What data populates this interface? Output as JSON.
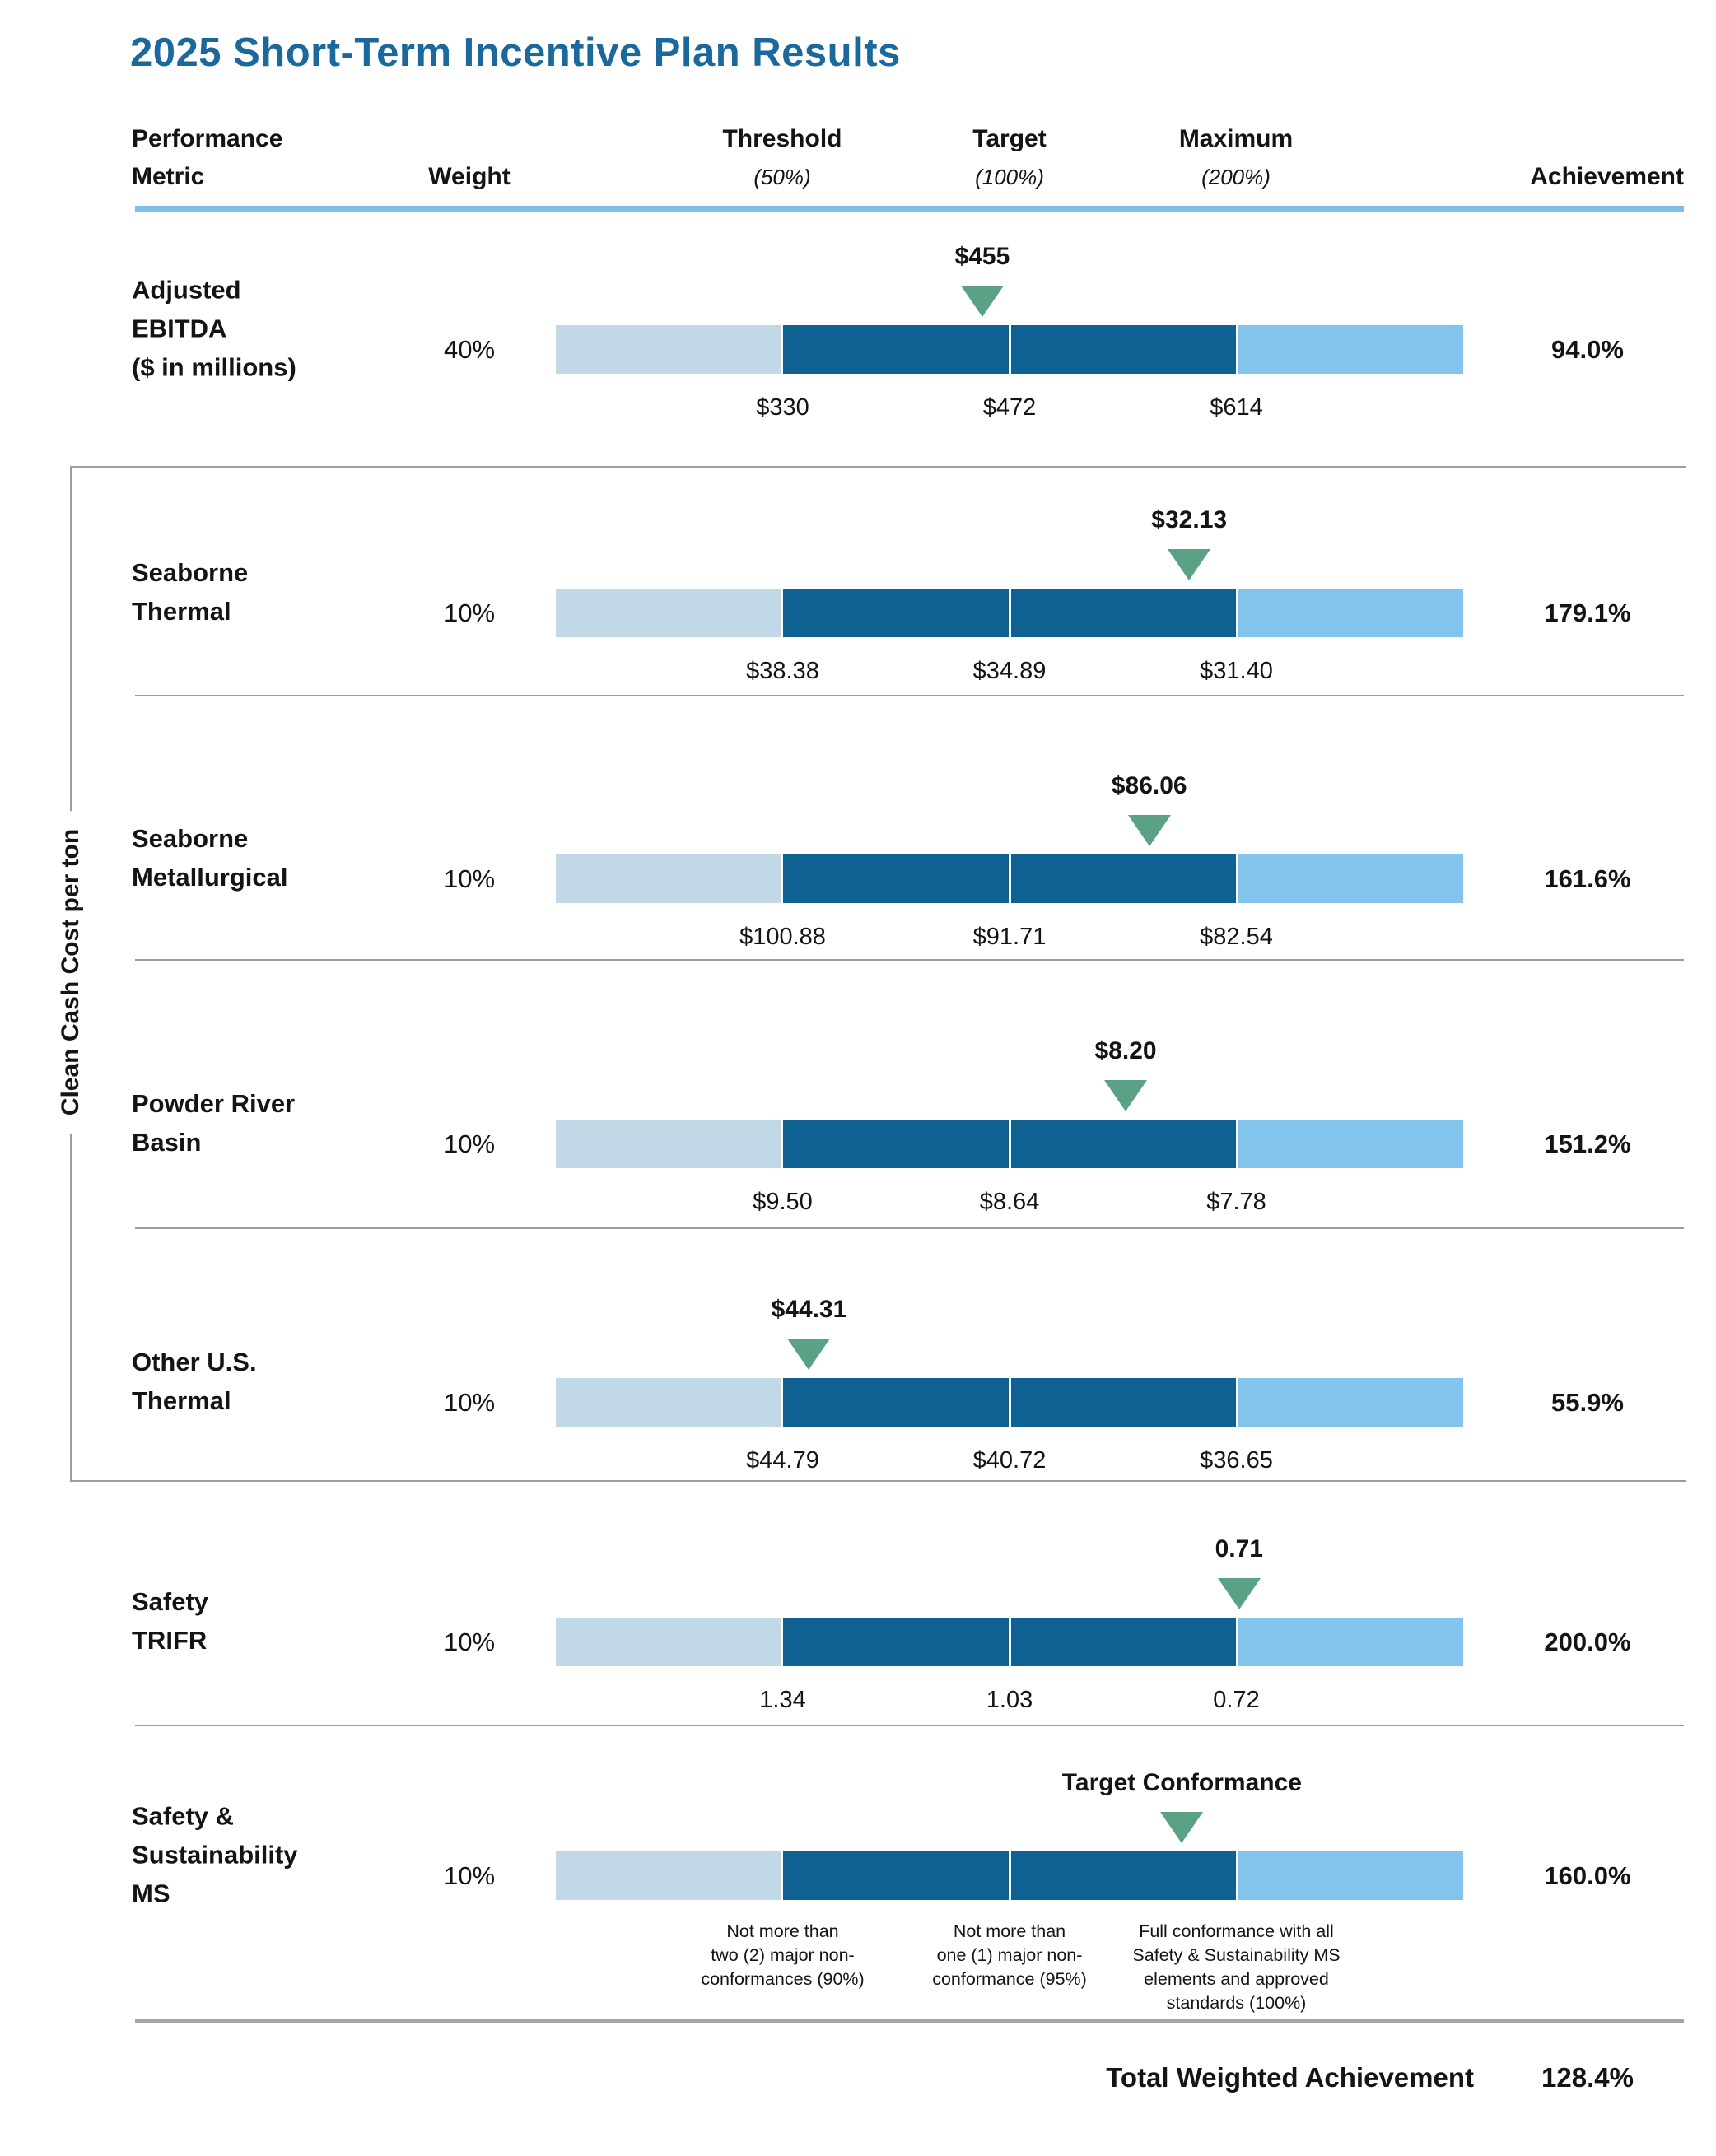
{
  "title": "2025 Short-Term Incentive Plan Results",
  "header": {
    "col_metric": [
      "Performance",
      "Metric"
    ],
    "col_weight": "Weight",
    "col_threshold": {
      "label": "Threshold",
      "sub": "(50%)"
    },
    "col_target": {
      "label": "Target",
      "sub": "(100%)"
    },
    "col_maximum": {
      "label": "Maximum",
      "sub": "(200%)"
    },
    "col_achievement": "Achievement"
  },
  "left_group_label": "Clean Cash Cost per ton",
  "rows": [
    {
      "metric_lines": [
        "Adjusted",
        "EBITDA",
        "($ in millions)"
      ],
      "weight": "40%",
      "marker_label": "$455",
      "marker_pos": 0.47,
      "scale_labels": [
        "$330",
        "$472",
        "$614"
      ],
      "achievement": "94.0%"
    },
    {
      "metric_lines": [
        "Seaborne",
        "Thermal"
      ],
      "weight": "10%",
      "marker_label": "$32.13",
      "marker_pos": 0.698,
      "scale_labels": [
        "$38.38",
        "$34.89",
        "$31.40"
      ],
      "achievement": "179.1%"
    },
    {
      "metric_lines": [
        "Seaborne",
        "Metallurgical"
      ],
      "weight": "10%",
      "marker_label": "$86.06",
      "marker_pos": 0.654,
      "scale_labels": [
        "$100.88",
        "$91.71",
        "$82.54"
      ],
      "achievement": "161.6%"
    },
    {
      "metric_lines": [
        "Powder River",
        "Basin"
      ],
      "weight": "10%",
      "marker_label": "$8.20",
      "marker_pos": 0.628,
      "scale_labels": [
        "$9.50",
        "$8.64",
        "$7.78"
      ],
      "achievement": "151.2%"
    },
    {
      "metric_lines": [
        "Other U.S.",
        "Thermal"
      ],
      "weight": "10%",
      "marker_label": "$44.31",
      "marker_pos": 0.279,
      "scale_labels": [
        "$44.79",
        "$40.72",
        "$36.65"
      ],
      "achievement": "55.9%"
    },
    {
      "metric_lines": [
        "Safety",
        "TRIFR"
      ],
      "weight": "10%",
      "marker_label": "0.71",
      "marker_pos": 0.753,
      "scale_labels": [
        "1.34",
        "1.03",
        "0.72"
      ],
      "achievement": "200.0%"
    },
    {
      "metric_lines": [
        "Safety &",
        "Sustainability",
        "MS"
      ],
      "weight": "10%",
      "marker_label": "Target Conformance",
      "marker_pos": 0.69,
      "scale_labels": [
        "Not more than\ntwo (2) major non-\nconformances (90%)",
        "Not more than\none (1) major non-\nconformance (95%)",
        "Full conformance with all\nSafety & Sustainability MS\nelements and approved\nstandards (100%)"
      ],
      "achievement": "160.0%"
    }
  ],
  "footer": {
    "total_label": "Total Weighted Achievement",
    "total_value": "128.4%"
  },
  "colors": {
    "title_blue": "#1b689c",
    "header_rule_blue": "#7cc0e8",
    "segment_below_threshold": "#c1d9e6",
    "segment_threshold_to_max": "#0e6191",
    "segment_above_max": "#82c4ec",
    "marker_green": "#5aa185",
    "separator_gray": "#9a9da0"
  },
  "chart_data": {
    "type": "bar",
    "title": "2025 Short-Term Incentive Plan Results",
    "categories": [
      "Adjusted EBITDA ($ in millions)",
      "Seaborne Thermal",
      "Seaborne Metallurgical",
      "Powder River Basin",
      "Other U.S. Thermal",
      "Safety TRIFR",
      "Safety & Sustainability MS"
    ],
    "group_label": "Clean Cash Cost per ton (applies to Seaborne Thermal, Seaborne Metallurgical, Powder River Basin, Other U.S. Thermal)",
    "series": [
      {
        "name": "Weight",
        "values": [
          "40%",
          "10%",
          "10%",
          "10%",
          "10%",
          "10%",
          "10%"
        ]
      },
      {
        "name": "Threshold (50%)",
        "values": [
          "$330",
          "$38.38",
          "$100.88",
          "$9.50",
          "$44.79",
          "1.34",
          "Not more than two (2) major non-conformances (90%)"
        ]
      },
      {
        "name": "Target (100%)",
        "values": [
          "$472",
          "$34.89",
          "$91.71",
          "$8.64",
          "$40.72",
          "1.03",
          "Not more than one (1) major non-conformance (95%)"
        ]
      },
      {
        "name": "Maximum (200%)",
        "values": [
          "$614",
          "$31.40",
          "$82.54",
          "$7.78",
          "$36.65",
          "0.72",
          "Full conformance with all Safety & Sustainability MS elements and approved standards (100%)"
        ]
      },
      {
        "name": "Actual result",
        "values": [
          "$455",
          "$32.13",
          "$86.06",
          "$8.20",
          "$44.31",
          "0.71",
          "Target Conformance"
        ]
      },
      {
        "name": "Achievement",
        "values": [
          "94.0%",
          "179.1%",
          "161.6%",
          "151.2%",
          "55.9%",
          "200.0%",
          "160.0%"
        ]
      }
    ],
    "total_weighted_achievement": "128.4%",
    "legend_position": "none",
    "grid": false
  }
}
